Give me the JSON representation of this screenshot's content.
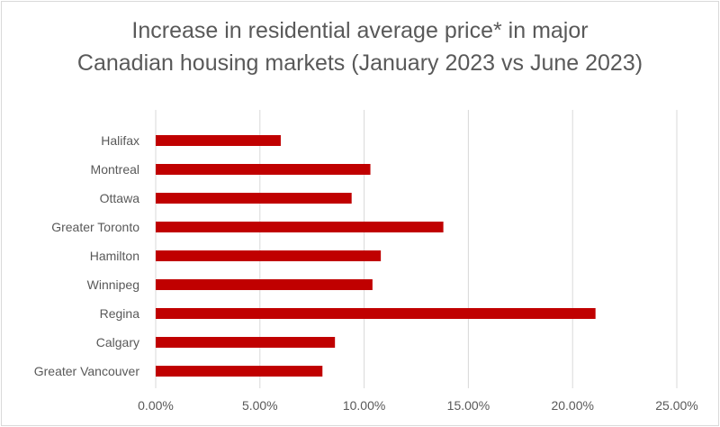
{
  "chart_data": {
    "type": "bar",
    "orientation": "horizontal",
    "title_lines": [
      "Increase in residential average price* in major",
      "Canadian housing markets (January 2023 vs June 2023)"
    ],
    "categories": [
      "Halifax",
      "Montreal",
      "Ottawa",
      "Greater Toronto",
      "Hamilton",
      "Winnipeg",
      "Regina",
      "Calgary",
      "Greater Vancouver"
    ],
    "values": [
      6.0,
      10.3,
      9.4,
      13.8,
      10.8,
      10.4,
      21.1,
      8.6,
      8.0
    ],
    "value_unit": "%",
    "xlim": [
      0,
      25
    ],
    "x_ticks": [
      "0.00%",
      "5.00%",
      "10.00%",
      "15.00%",
      "20.00%",
      "25.00%"
    ],
    "gridlines": "vertical",
    "legend": "none",
    "bar_color": "#c00000"
  }
}
